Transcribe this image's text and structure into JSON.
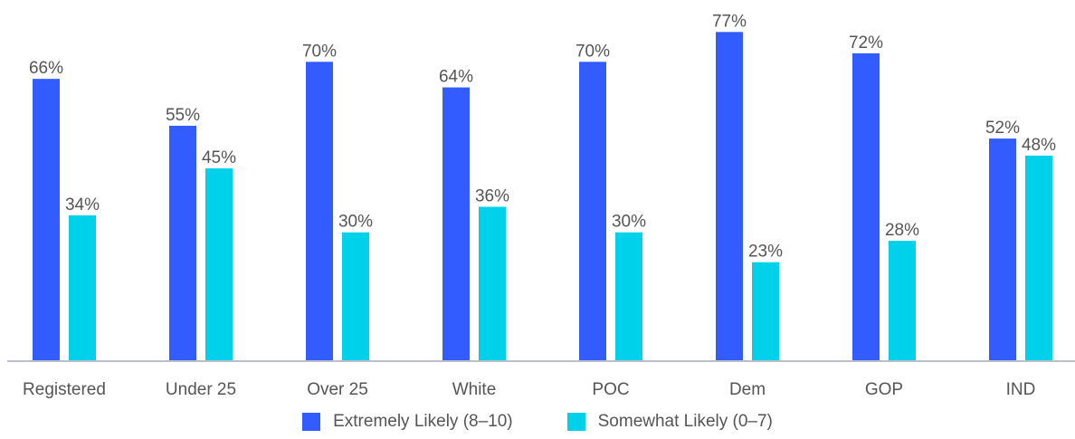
{
  "chart_data": {
    "type": "bar",
    "categories": [
      "Registered",
      "Under 25",
      "Over 25",
      "White",
      "POC",
      "Dem",
      "GOP",
      "IND"
    ],
    "series": [
      {
        "name": "Extremely Likely (8–10)",
        "color": "#335cff",
        "values": [
          66,
          55,
          70,
          64,
          70,
          77,
          72,
          52
        ],
        "labels": [
          "66%",
          "55%",
          "70%",
          "64%",
          "70%",
          "77%",
          "72%",
          "52%"
        ]
      },
      {
        "name": "Somewhat Likely (0–7)",
        "color": "#00d1ea",
        "values": [
          34,
          45,
          30,
          36,
          30,
          23,
          28,
          48
        ],
        "labels": [
          "34%",
          "45%",
          "30%",
          "36%",
          "30%",
          "23%",
          "28%",
          "48%"
        ]
      }
    ],
    "ylim": [
      0,
      80
    ],
    "grid": false,
    "legend_position": "bottom-center",
    "axis_color": "#b8bfc8",
    "text_color": "#555555"
  }
}
